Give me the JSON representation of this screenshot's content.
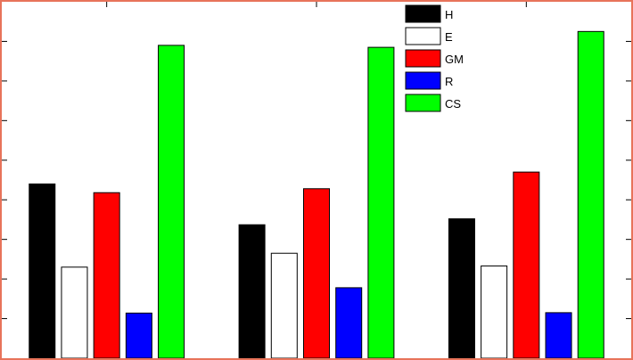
{
  "chart_data": {
    "type": "bar",
    "categories": [
      "",
      "",
      ""
    ],
    "series": [
      {
        "name": "H",
        "color": "#000000",
        "values": [
          4.4,
          3.37,
          3.52
        ]
      },
      {
        "name": "E",
        "color": "#ffffff",
        "values": [
          2.3,
          2.65,
          2.33
        ]
      },
      {
        "name": "GM",
        "color": "#ff0000",
        "values": [
          4.18,
          4.28,
          4.7
        ]
      },
      {
        "name": "R",
        "color": "#0000ff",
        "values": [
          1.14,
          1.78,
          1.15
        ]
      },
      {
        "name": "CS",
        "color": "#00ff00",
        "values": [
          7.9,
          7.85,
          8.25
        ]
      }
    ],
    "title": "",
    "xlabel": "",
    "ylabel": "",
    "ylim": [
      0,
      9
    ],
    "legend_position": "top-right",
    "grid": false
  }
}
